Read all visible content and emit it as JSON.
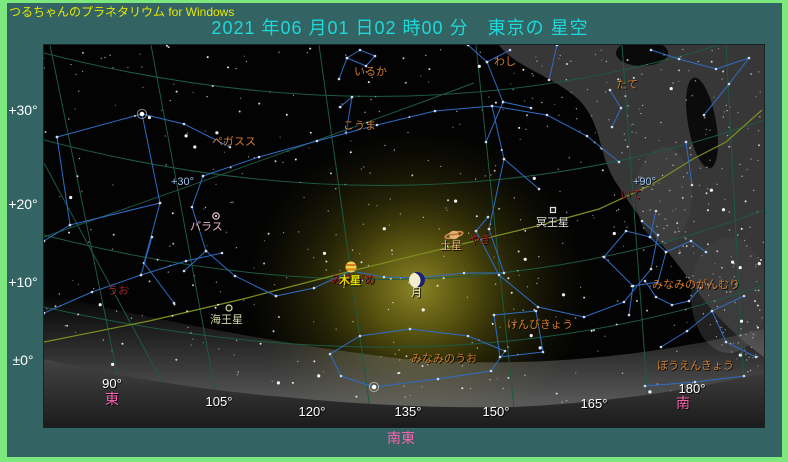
{
  "window": {
    "app_title": "つるちゃんのプラネタリウム for Windows",
    "datetime_title": "2021 年06 月01 日02 時00 分　東京の 星空"
  },
  "colors": {
    "frame_green": "#7de87d",
    "window_teal": "#336363",
    "app_title_yellow": "#e8e800",
    "datetime_cyan": "#1ed9d9",
    "direction_pink": "#f964ae",
    "constellation_label_orange": "#cf7a2e",
    "zodiac_label_red": "#a12424",
    "grid_green": "#1d5a43",
    "ecliptic_olive": "#7d8f1f",
    "constellation_line_blue": "#2f6dc6",
    "milky_way_gray": "#3c3c3c"
  },
  "frame": {
    "altitude_labels": [
      {
        "text": "+30°"
      },
      {
        "text": "+20°"
      },
      {
        "text": "+10°"
      },
      {
        "text": "±0°"
      }
    ],
    "azimuth_labels": [
      {
        "text": "90°"
      },
      {
        "text": "105°"
      },
      {
        "text": "120°"
      },
      {
        "text": "135°"
      },
      {
        "text": "150°"
      },
      {
        "text": "165°"
      },
      {
        "text": "180°"
      }
    ],
    "directions": {
      "east": "東",
      "southeast": "南東",
      "south": "南"
    }
  },
  "chart": {
    "ecliptic_marks": [
      {
        "text": "+30°"
      },
      {
        "text": "+90°"
      }
    ],
    "constellations": [
      {
        "name": "delphinus",
        "text": "いるか"
      },
      {
        "name": "aquila",
        "text": "わし"
      },
      {
        "name": "scutum",
        "text": "たて"
      },
      {
        "name": "equuleus",
        "text": "こうま"
      },
      {
        "name": "pegasus",
        "text": "ペガスス"
      },
      {
        "name": "corona-australis",
        "text": "みなみのがんむり"
      },
      {
        "name": "microscopium",
        "text": "けんびきょう"
      },
      {
        "name": "piscis-austrinus",
        "text": "みなみのうお"
      },
      {
        "name": "telescopium",
        "text": "ぼうえんきょう"
      }
    ],
    "zodiac": [
      {
        "name": "pisces",
        "text": "うお"
      },
      {
        "name": "aquarius",
        "text": "みずがめ"
      },
      {
        "name": "capricornus",
        "text": "やぎ"
      },
      {
        "name": "sagittarius",
        "text": "いて"
      }
    ],
    "objects": [
      {
        "name": "moon",
        "label": "月"
      },
      {
        "name": "jupiter",
        "label": "木星"
      },
      {
        "name": "saturn",
        "label": "土星"
      },
      {
        "name": "neptune",
        "label": "海王星"
      },
      {
        "name": "pluto",
        "label": "冥王星"
      },
      {
        "name": "pallas",
        "label": "パラス"
      }
    ]
  }
}
